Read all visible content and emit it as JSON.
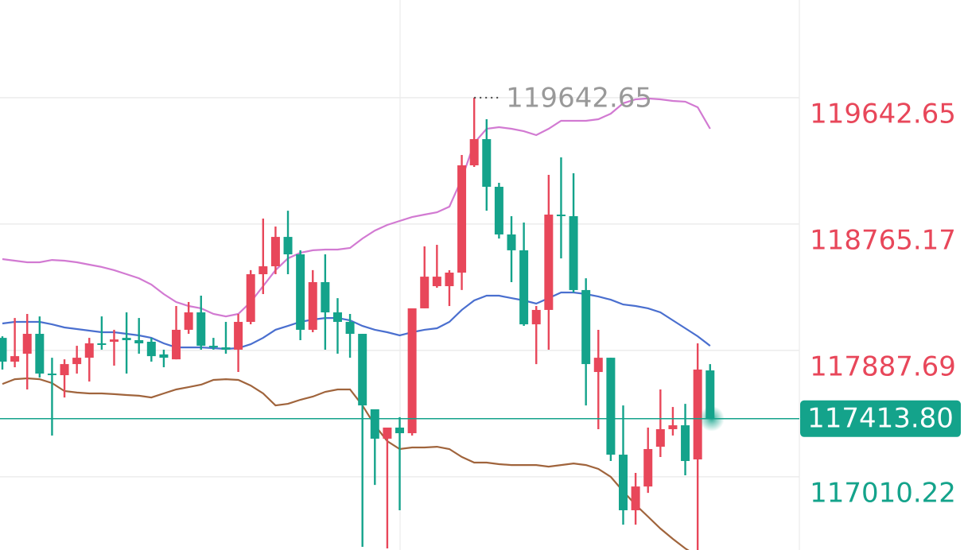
{
  "chart_data": {
    "type": "candlestick",
    "up_color": "#e8475a",
    "down_color": "#14a38b",
    "open": [
      117975,
      117810,
      117865,
      118003,
      117727,
      117716,
      117793,
      117837,
      117937,
      117948,
      117975,
      117959,
      117948,
      117860,
      117826,
      118031,
      118152,
      117920,
      117909,
      117893,
      118086,
      118417,
      118472,
      118676,
      118555,
      118031,
      118362,
      118152,
      118086,
      118003,
      117479,
      117275,
      117352,
      117313,
      118180,
      118334,
      118334,
      118428,
      119173,
      119355,
      119024,
      118693,
      118583,
      118069,
      118169,
      118831,
      118820,
      118307,
      117738,
      117837,
      117164,
      116778,
      116943,
      117219,
      117341,
      117368,
      117131,
      117749
    ],
    "high": [
      117986,
      118113,
      118141,
      118124,
      117837,
      117826,
      117920,
      117975,
      118124,
      118031,
      118152,
      118113,
      117975,
      117893,
      118196,
      118224,
      118268,
      117975,
      118086,
      118141,
      118445,
      118803,
      118748,
      118858,
      118583,
      118445,
      118555,
      118251,
      118141,
      118003,
      117479,
      117352,
      117424,
      118180,
      118610,
      118621,
      118445,
      119245,
      119642.65,
      119493,
      119052,
      118820,
      118776,
      118196,
      119107,
      119228,
      119118,
      118389,
      118031,
      117837,
      117506,
      117037,
      117352,
      117617,
      117495,
      117517,
      117937,
      117793
    ],
    "low": [
      117755,
      117771,
      117617,
      117699,
      117297,
      117561,
      117727,
      117672,
      117893,
      117782,
      117727,
      117865,
      117810,
      117771,
      117826,
      118003,
      117893,
      117893,
      117865,
      117738,
      118069,
      118279,
      118417,
      118417,
      117959,
      118014,
      117893,
      117865,
      117837,
      116524,
      116954,
      116513,
      116778,
      117297,
      118180,
      118323,
      118196,
      118307,
      119162,
      118858,
      118665,
      118362,
      118058,
      117793,
      117893,
      118527,
      118290,
      117506,
      117341,
      117120,
      116678,
      116678,
      116899,
      117148,
      117297,
      117021,
      116458,
      117413.8
    ],
    "close": [
      117810,
      117848,
      118003,
      117727,
      117716,
      117793,
      117837,
      117937,
      117926,
      117964,
      117959,
      117937,
      117848,
      117837,
      118031,
      118152,
      117920,
      117909,
      117893,
      118086,
      118417,
      118472,
      118676,
      118555,
      118031,
      118362,
      118152,
      118086,
      118003,
      117506,
      117275,
      117352,
      117313,
      118180,
      118400,
      118400,
      118428,
      119173,
      119355,
      119024,
      118693,
      118583,
      118069,
      118169,
      118831,
      118820,
      118307,
      117793,
      117837,
      117164,
      116778,
      116943,
      117203,
      117341,
      117368,
      117120,
      117755,
      117413.8
    ],
    "bands": [
      {
        "color": "#d27ad2",
        "values": [
          118522,
          118511,
          118500,
          118500,
          118516,
          118511,
          118500,
          118483,
          118467,
          118445,
          118417,
          118389,
          118345,
          118279,
          118224,
          118196,
          118180,
          118141,
          118124,
          118141,
          118224,
          118334,
          118445,
          118527,
          118566,
          118583,
          118588,
          118588,
          118599,
          118665,
          118720,
          118759,
          118787,
          118814,
          118831,
          118847,
          118886,
          119079,
          119328,
          119427,
          119438,
          119427,
          119410,
          119383,
          119427,
          119482,
          119482,
          119482,
          119493,
          119532,
          119604,
          119631,
          119637,
          119631,
          119620,
          119615,
          119576,
          119427
        ]
      },
      {
        "color": "#4a6fcf",
        "values": [
          118075,
          118086,
          118086,
          118086,
          118069,
          118047,
          118036,
          118025,
          118014,
          118014,
          118003,
          117992,
          117975,
          117937,
          117909,
          117909,
          117909,
          117904,
          117898,
          117904,
          117931,
          117975,
          118031,
          118058,
          118086,
          118102,
          118113,
          118113,
          118097,
          118058,
          118031,
          118014,
          117992,
          118014,
          118031,
          118042,
          118086,
          118169,
          118235,
          118268,
          118268,
          118251,
          118235,
          118213,
          118251,
          118290,
          118290,
          118279,
          118262,
          118240,
          118207,
          118196,
          118180,
          118152,
          118097,
          118042,
          117986,
          117920
        ]
      },
      {
        "color": "#a0643c",
        "values": [
          117655,
          117688,
          117694,
          117688,
          117661,
          117606,
          117595,
          117589,
          117589,
          117584,
          117578,
          117573,
          117561,
          117589,
          117617,
          117633,
          117650,
          117683,
          117688,
          117683,
          117644,
          117589,
          117506,
          117517,
          117545,
          117567,
          117600,
          117617,
          117617,
          117506,
          117368,
          117258,
          117203,
          117214,
          117214,
          117219,
          117203,
          117148,
          117109,
          117109,
          117098,
          117092,
          117092,
          117092,
          117081,
          117092,
          117103,
          117092,
          117065,
          117010,
          116910,
          116816,
          116734,
          116651,
          116579,
          116513,
          116458,
          116403
        ]
      }
    ],
    "ylim": [
      116502,
      120321
    ],
    "yticks": [
      119642.65,
      118765.17,
      117887.69,
      117010.22
    ],
    "last_price": {
      "value": 117413.8,
      "label": "117413.80",
      "color": "#14a38b"
    },
    "grid": true
  }
}
